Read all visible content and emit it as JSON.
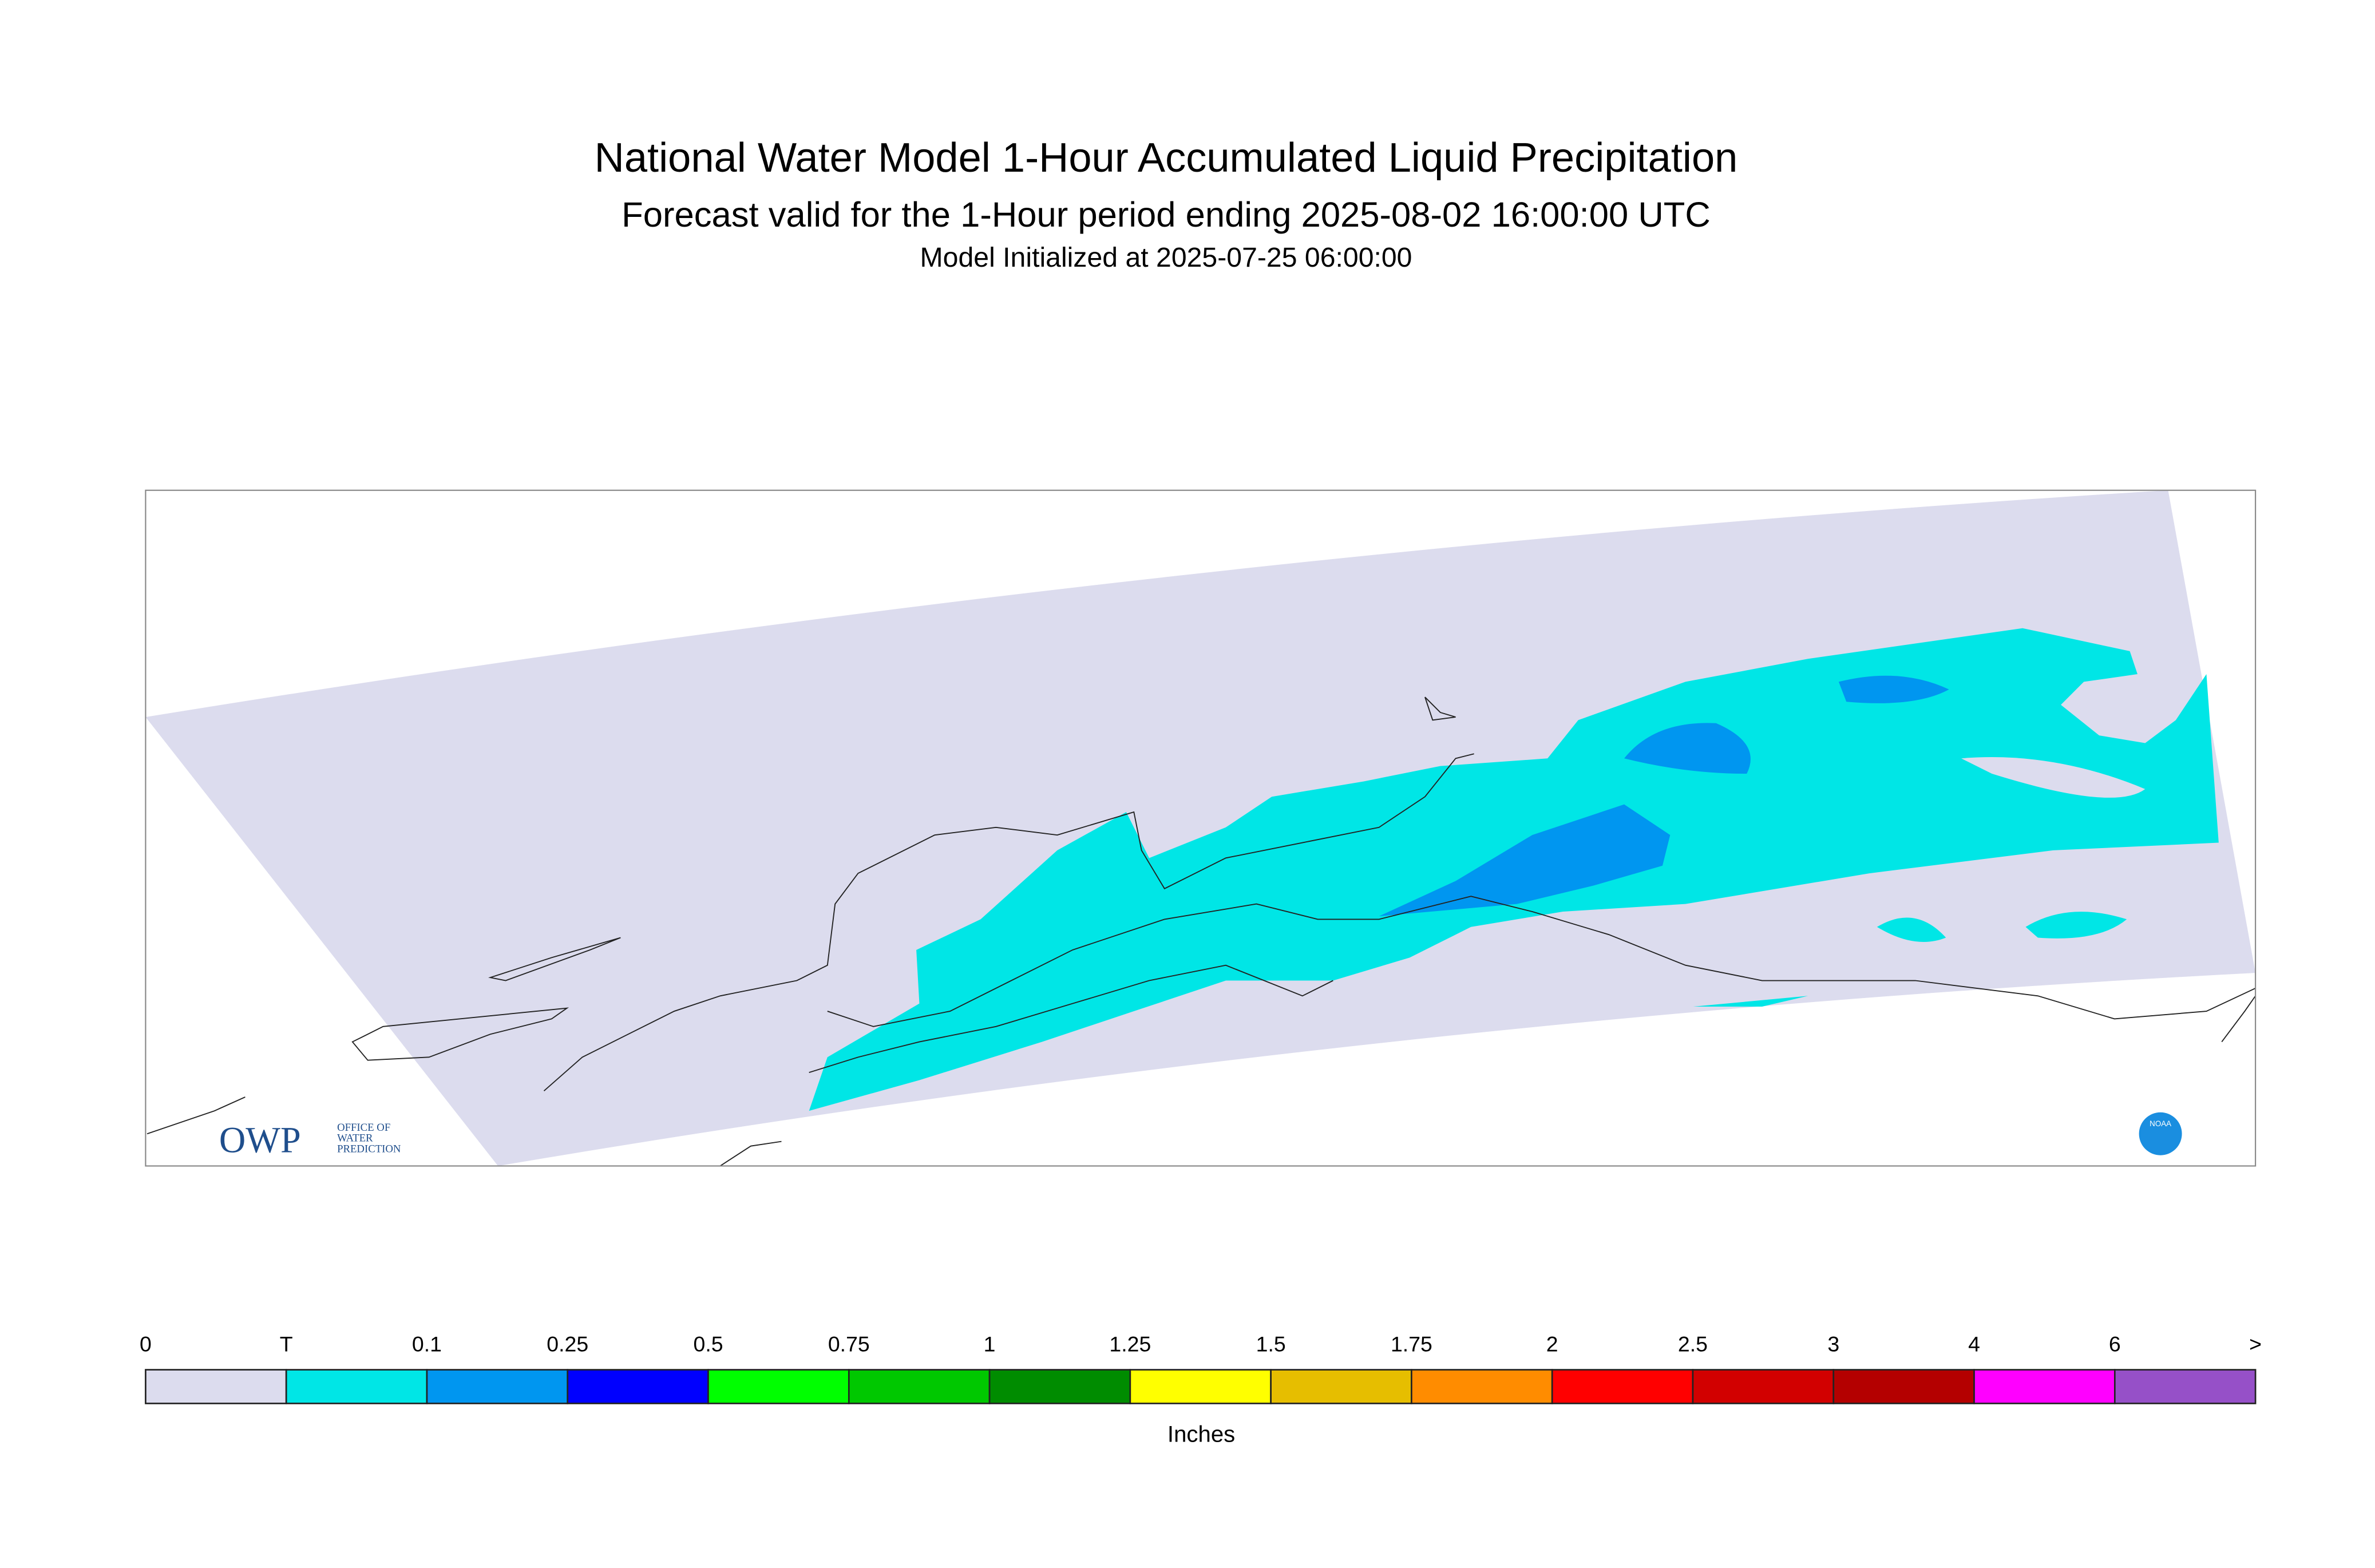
{
  "header": {
    "title": "National Water Model 1-Hour Accumulated Liquid Precipitation",
    "subtitle": "Forecast valid for the 1-Hour period ending 2025-08-02 16:00:00 UTC",
    "init": "Model Initialized at 2025-07-25 06:00:00"
  },
  "legend": {
    "labels": [
      "0",
      "T",
      "0.1",
      "0.25",
      "0.5",
      "0.75",
      "1",
      "1.25",
      "1.5",
      "1.75",
      "2",
      "2.5",
      "3",
      "4",
      "6",
      ">"
    ],
    "colors": [
      "#dcdcee",
      "#00e6e6",
      "#0096f0",
      "#0000ff",
      "#00ff00",
      "#00c800",
      "#008c00",
      "#ffff00",
      "#e6be00",
      "#ff8c00",
      "#ff0000",
      "#d20000",
      "#b40000",
      "#ff00ff",
      "#9650c8"
    ],
    "units": "Inches"
  },
  "logos": {
    "owp": "OWP",
    "owp_text": [
      "OFFICE OF",
      "WATER",
      "PREDICTION"
    ],
    "noaa": "NOAA"
  }
}
